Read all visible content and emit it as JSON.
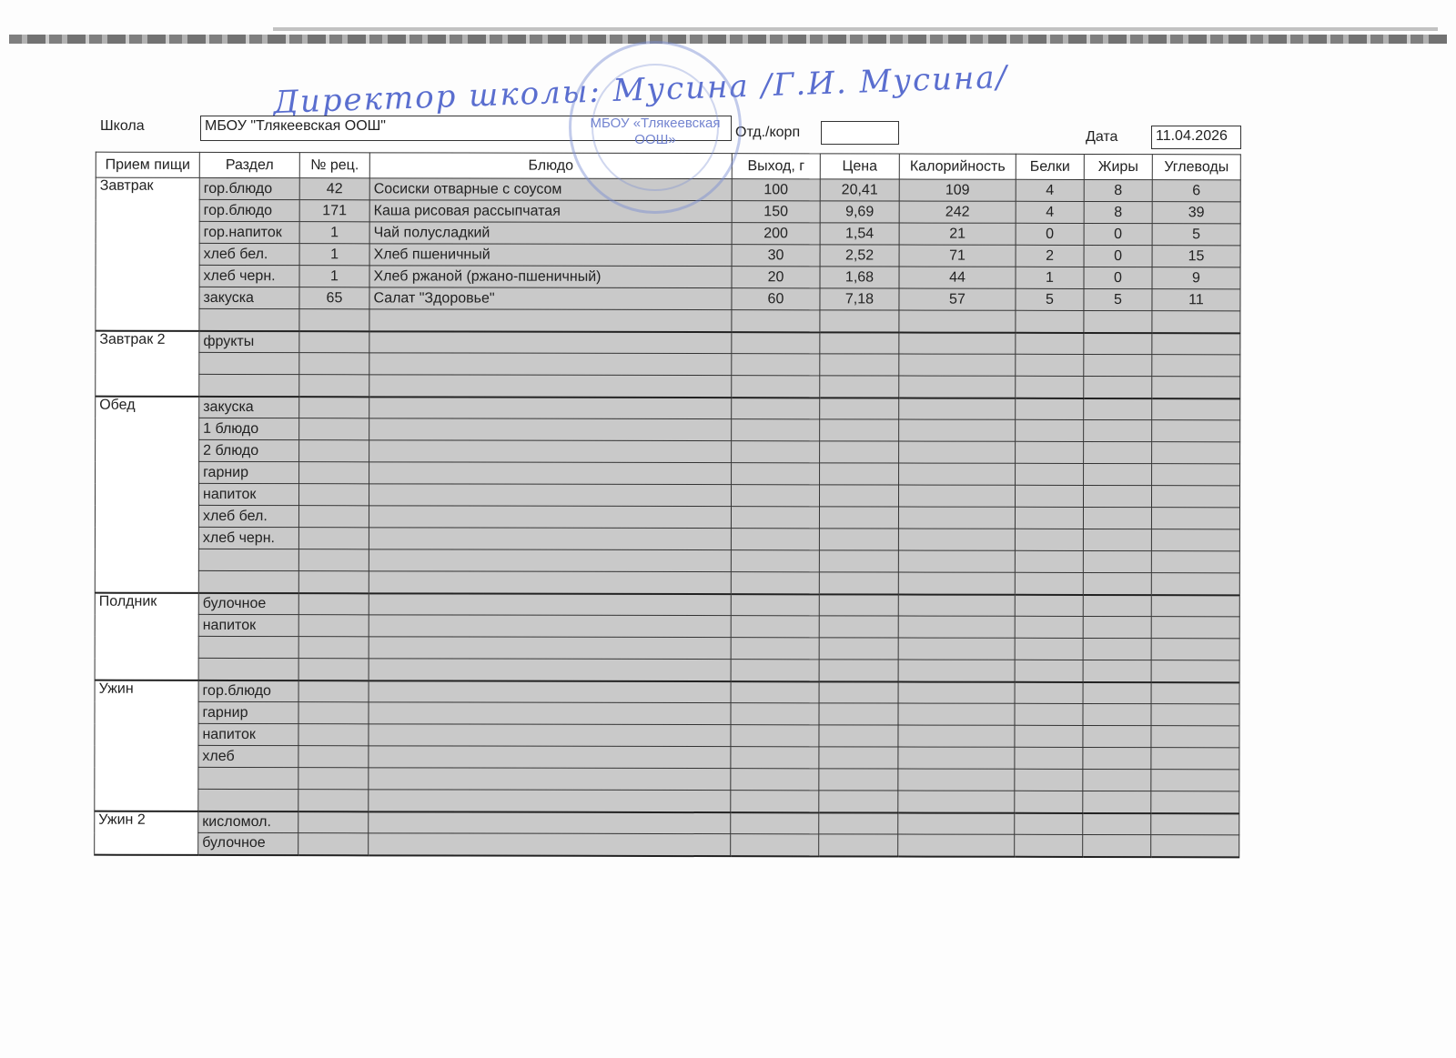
{
  "signature": "Директор школы: Мусина /Г.И. Мусина/",
  "stamp": {
    "line1": "МБОУ",
    "line2": "«Тлякеевская",
    "line3": "ООШ»"
  },
  "header": {
    "school_label": "Школа",
    "school_value": "МБОУ \"Тлякеевская ООШ\"",
    "dept_label": "Отд./корп",
    "dept_value": "",
    "date_label": "Дата",
    "date_value": "11.04.2026"
  },
  "columns": [
    "Прием пищи",
    "Раздел",
    "№ рец.",
    "Блюдо",
    "Выход, г",
    "Цена",
    "Калорийность",
    "Белки",
    "Жиры",
    "Углеводы"
  ],
  "meals": [
    {
      "name": "Завтрак",
      "rows": [
        [
          "гор.блюдо",
          "42",
          "Сосиски отварные с соусом",
          "100",
          "20,41",
          "109",
          "4",
          "8",
          "6"
        ],
        [
          "гор.блюдо",
          "171",
          "Каша рисовая рассыпчатая",
          "150",
          "9,69",
          "242",
          "4",
          "8",
          "39"
        ],
        [
          "гор.напиток",
          "1",
          "Чай полусладкий",
          "200",
          "1,54",
          "21",
          "0",
          "0",
          "5"
        ],
        [
          "хлеб бел.",
          "1",
          "Хлеб пшеничный",
          "30",
          "2,52",
          "71",
          "2",
          "0",
          "15"
        ],
        [
          "хлеб черн.",
          "1",
          "Хлеб ржаной (ржано-пшеничный)",
          "20",
          "1,68",
          "44",
          "1",
          "0",
          "9"
        ],
        [
          "закуска",
          "65",
          "Салат \"Здоровье\"",
          "60",
          "7,18",
          "57",
          "5",
          "5",
          "11"
        ],
        [
          "",
          "",
          "",
          "",
          "",
          "",
          "",
          "",
          ""
        ]
      ]
    },
    {
      "name": "Завтрак 2",
      "rows": [
        [
          "фрукты",
          "",
          "",
          "",
          "",
          "",
          "",
          "",
          ""
        ],
        [
          "",
          "",
          "",
          "",
          "",
          "",
          "",
          "",
          ""
        ],
        [
          "",
          "",
          "",
          "",
          "",
          "",
          "",
          "",
          ""
        ]
      ]
    },
    {
      "name": "Обед",
      "rows": [
        [
          "закуска",
          "",
          "",
          "",
          "",
          "",
          "",
          "",
          ""
        ],
        [
          "1 блюдо",
          "",
          "",
          "",
          "",
          "",
          "",
          "",
          ""
        ],
        [
          "2 блюдо",
          "",
          "",
          "",
          "",
          "",
          "",
          "",
          ""
        ],
        [
          "гарнир",
          "",
          "",
          "",
          "",
          "",
          "",
          "",
          ""
        ],
        [
          "напиток",
          "",
          "",
          "",
          "",
          "",
          "",
          "",
          ""
        ],
        [
          "хлеб бел.",
          "",
          "",
          "",
          "",
          "",
          "",
          "",
          ""
        ],
        [
          "хлеб черн.",
          "",
          "",
          "",
          "",
          "",
          "",
          "",
          ""
        ],
        [
          "",
          "",
          "",
          "",
          "",
          "",
          "",
          "",
          ""
        ],
        [
          "",
          "",
          "",
          "",
          "",
          "",
          "",
          "",
          ""
        ]
      ]
    },
    {
      "name": "Полдник",
      "rows": [
        [
          "булочное",
          "",
          "",
          "",
          "",
          "",
          "",
          "",
          ""
        ],
        [
          "напиток",
          "",
          "",
          "",
          "",
          "",
          "",
          "",
          ""
        ],
        [
          "",
          "",
          "",
          "",
          "",
          "",
          "",
          "",
          ""
        ],
        [
          "",
          "",
          "",
          "",
          "",
          "",
          "",
          "",
          ""
        ]
      ]
    },
    {
      "name": "Ужин",
      "rows": [
        [
          "гор.блюдо",
          "",
          "",
          "",
          "",
          "",
          "",
          "",
          ""
        ],
        [
          "гарнир",
          "",
          "",
          "",
          "",
          "",
          "",
          "",
          ""
        ],
        [
          "напиток",
          "",
          "",
          "",
          "",
          "",
          "",
          "",
          ""
        ],
        [
          "хлеб",
          "",
          "",
          "",
          "",
          "",
          "",
          "",
          ""
        ],
        [
          "",
          "",
          "",
          "",
          "",
          "",
          "",
          "",
          ""
        ],
        [
          "",
          "",
          "",
          "",
          "",
          "",
          "",
          "",
          ""
        ]
      ]
    },
    {
      "name": "Ужин 2",
      "rows": [
        [
          "кисломол.",
          "",
          "",
          "",
          "",
          "",
          "",
          "",
          ""
        ],
        [
          "булочное",
          "",
          "",
          "",
          "",
          "",
          "",
          "",
          ""
        ]
      ]
    }
  ]
}
